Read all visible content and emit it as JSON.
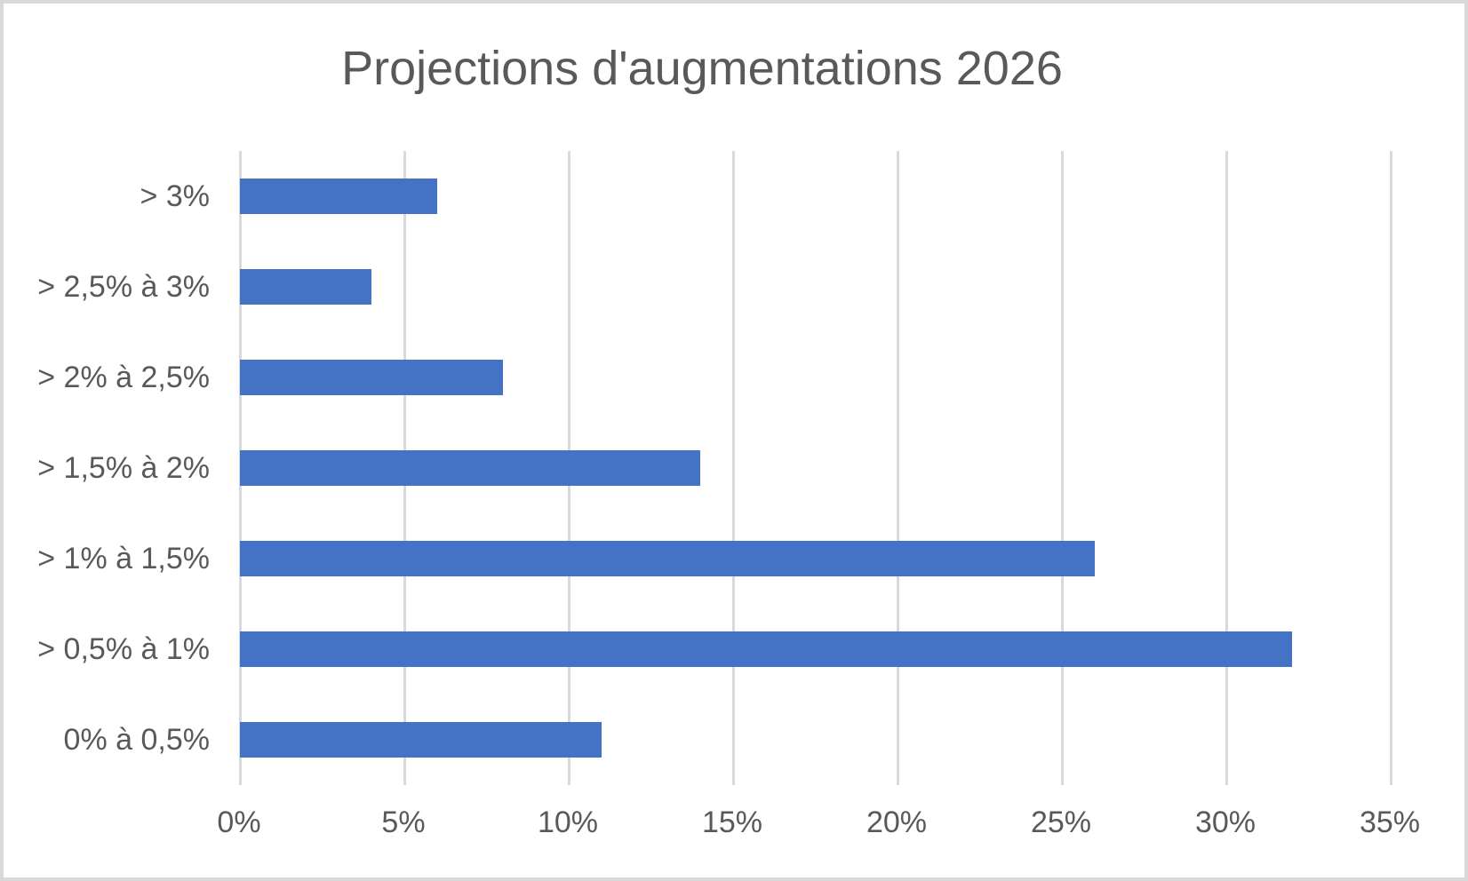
{
  "chart_data": {
    "type": "bar",
    "orientation": "horizontal",
    "title": "Projections d'augmentations 2026",
    "categories": [
      "> 3%",
      "> 2,5% à 3%",
      "> 2% à 2,5%",
      "> 1,5% à 2%",
      "> 1% à 1,5%",
      "> 0,5% à 1%",
      "0% à 0,5%"
    ],
    "values": [
      6,
      4,
      8,
      14,
      26,
      32,
      11
    ],
    "value_unit": "%",
    "xlabel": "",
    "ylabel": "",
    "x_axis": {
      "min": 0,
      "max": 35,
      "step": 5,
      "tick_labels": [
        "0%",
        "5%",
        "10%",
        "15%",
        "20%",
        "25%",
        "30%",
        "35%"
      ]
    },
    "grid": true,
    "legend": false,
    "colors": {
      "bar": "#4472c4",
      "text": "#595959",
      "gridline": "#d9d9d9",
      "background": "#ffffff",
      "frame_border": "#d9d9d9"
    }
  }
}
